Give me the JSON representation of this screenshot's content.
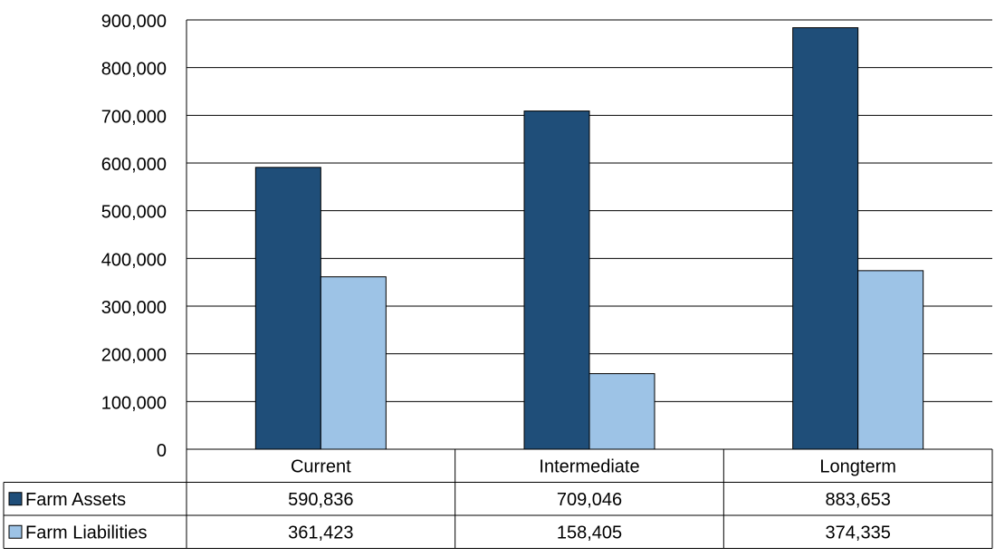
{
  "chart_data": {
    "type": "bar",
    "categories": [
      "Current",
      "Intermediate",
      "Longterm"
    ],
    "series": [
      {
        "name": "Farm Assets",
        "values": [
          590836,
          709046,
          883653
        ],
        "value_labels": [
          "590,836",
          "709,046",
          "883,653"
        ],
        "color": "#1F4E79"
      },
      {
        "name": "Farm Liabilities",
        "values": [
          361423,
          158405,
          374335
        ],
        "value_labels": [
          "361,423",
          "158,405",
          "374,335"
        ],
        "color": "#9DC3E6"
      }
    ],
    "ylim": [
      0,
      900000
    ],
    "yticks": [
      0,
      100000,
      200000,
      300000,
      400000,
      500000,
      600000,
      700000,
      800000,
      900000
    ],
    "ytick_labels": [
      "0",
      "100,000",
      "200,000",
      "300,000",
      "400,000",
      "500,000",
      "600,000",
      "700,000",
      "800,000",
      "900,000"
    ],
    "grid": true,
    "legend": "data table below chart",
    "title": "",
    "xlabel": "",
    "ylabel": ""
  }
}
